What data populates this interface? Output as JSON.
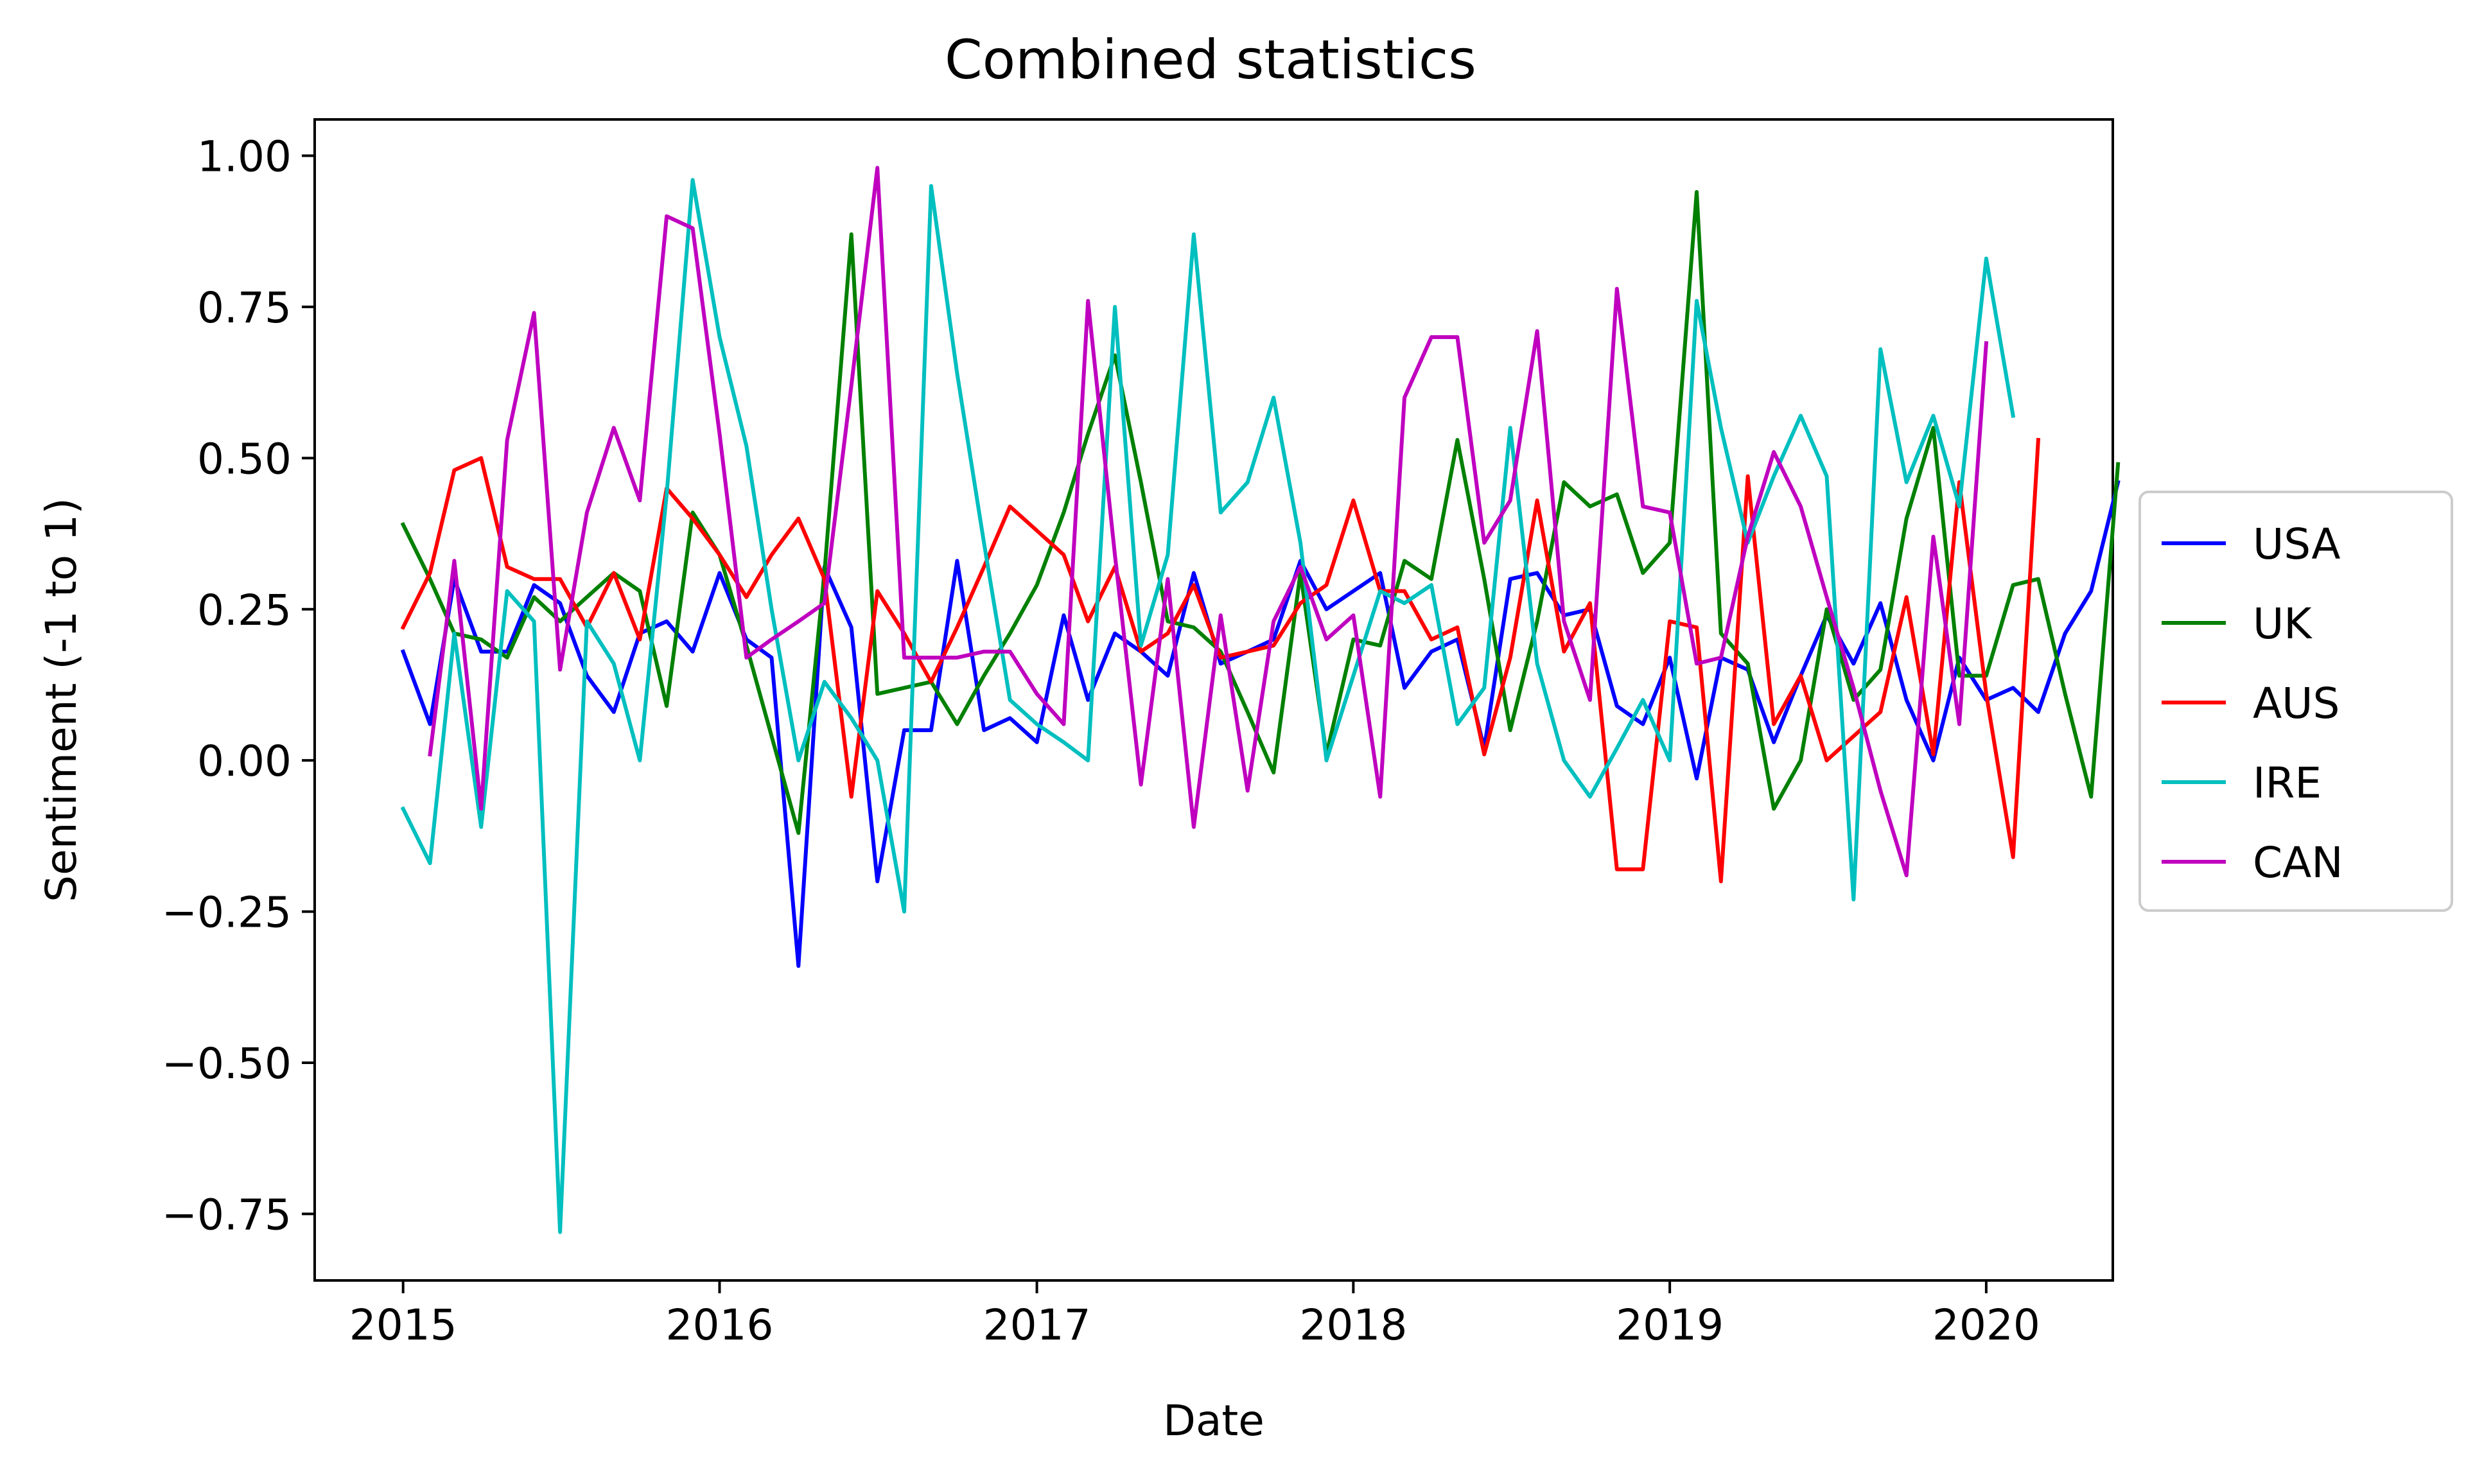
{
  "chart_data": {
    "type": "line",
    "title": "Combined statistics",
    "xlabel": "Date",
    "ylabel": "Sentiment (-1 to 1)",
    "xlim": [
      "2014-09-21",
      "2020-05-26"
    ],
    "ylim": [
      -0.86,
      1.06
    ],
    "x_ticks": [
      "2015",
      "2016",
      "2017",
      "2018",
      "2019",
      "2020"
    ],
    "y_ticks": [
      "1.00",
      "0.75",
      "0.50",
      "0.25",
      "0.00",
      "−0.25",
      "−0.50",
      "−0.75"
    ],
    "grid": false,
    "legend_position": "right-outside",
    "x_interval": "monthly",
    "series": [
      {
        "name": "USA",
        "color": "#0000ff",
        "start": "2015-01",
        "values": [
          0.18,
          0.06,
          0.3,
          0.18,
          0.18,
          0.29,
          0.26,
          0.14,
          0.08,
          0.21,
          0.23,
          0.18,
          0.31,
          0.2,
          0.17,
          -0.34,
          0.32,
          0.22,
          -0.2,
          0.05,
          0.05,
          0.33,
          0.05,
          0.07,
          0.03,
          0.24,
          0.1,
          0.21,
          0.18,
          0.14,
          0.31,
          0.16,
          0.18,
          0.2,
          0.33,
          0.25,
          0.28,
          0.31,
          0.12,
          0.18,
          0.2,
          0.02,
          0.3,
          0.31,
          0.24,
          0.25,
          0.09,
          0.06,
          0.17,
          -0.03,
          0.17,
          0.15,
          0.03,
          0.14,
          0.24,
          0.16,
          0.26,
          0.1,
          0.0,
          0.17,
          0.1,
          0.12,
          0.08,
          0.21,
          0.28,
          0.46
        ]
      },
      {
        "name": "UK",
        "color": "#008000",
        "start": "2015-01",
        "values": [
          0.39,
          0.3,
          0.21,
          0.2,
          0.17,
          0.27,
          0.23,
          0.27,
          0.31,
          0.28,
          0.09,
          0.41,
          0.34,
          0.19,
          0.04,
          -0.12,
          0.31,
          0.87,
          0.11,
          0.12,
          0.13,
          0.06,
          0.14,
          0.21,
          0.29,
          0.41,
          0.54,
          0.67,
          0.46,
          0.23,
          0.22,
          0.18,
          0.08,
          -0.02,
          0.31,
          0.01,
          0.2,
          0.19,
          0.33,
          0.3,
          0.53,
          0.3,
          0.05,
          0.23,
          0.46,
          0.42,
          0.44,
          0.31,
          0.36,
          0.94,
          0.21,
          0.16,
          -0.08,
          0.0,
          0.25,
          0.1,
          0.15,
          0.4,
          0.55,
          0.14,
          0.14,
          0.29,
          0.3,
          0.11,
          -0.06,
          0.49
        ]
      },
      {
        "name": "AUS",
        "color": "#ff0000",
        "start": "2015-01",
        "values": [
          0.22,
          0.31,
          0.48,
          0.5,
          0.32,
          0.3,
          0.3,
          0.22,
          0.31,
          0.2,
          0.45,
          0.4,
          0.34,
          0.27,
          0.34,
          0.4,
          0.3,
          -0.06,
          0.28,
          0.21,
          0.13,
          0.22,
          0.32,
          0.42,
          0.38,
          0.34,
          0.23,
          0.32,
          0.18,
          0.21,
          0.29,
          0.17,
          0.18,
          0.19,
          0.26,
          0.29,
          0.43,
          0.28,
          0.28,
          0.2,
          0.22,
          0.01,
          0.17,
          0.43,
          0.18,
          0.26,
          -0.18,
          -0.18,
          0.23,
          0.22,
          -0.2,
          0.47,
          0.06,
          0.14,
          0.0,
          0.04,
          0.08,
          0.27,
          0.01,
          0.46,
          0.11,
          -0.16,
          0.53
        ]
      },
      {
        "name": "IRE",
        "color": "#00bfbf",
        "start": "2015-01",
        "values": [
          -0.08,
          -0.17,
          0.21,
          -0.11,
          0.28,
          0.23,
          -0.78,
          0.23,
          0.16,
          0.0,
          0.44,
          0.96,
          0.7,
          0.52,
          0.25,
          0.0,
          0.13,
          0.07,
          0.0,
          -0.25,
          0.95,
          0.64,
          0.36,
          0.1,
          0.06,
          0.03,
          0.0,
          0.75,
          0.19,
          0.34,
          0.87,
          0.41,
          0.46,
          0.6,
          0.36,
          0.0,
          0.14,
          0.28,
          0.26,
          0.29,
          0.06,
          0.12,
          0.55,
          0.16,
          0.0,
          -0.06,
          0.02,
          0.1,
          0.0,
          0.76,
          0.55,
          0.36,
          0.47,
          0.57,
          0.47,
          -0.23,
          0.68,
          0.46,
          0.57,
          0.42,
          0.83,
          0.57
        ]
      },
      {
        "name": "CAN",
        "color": "#bf00bf",
        "start": "2015-01",
        "values": [
          null,
          0.01,
          0.33,
          -0.08,
          0.53,
          0.74,
          0.15,
          0.41,
          0.55,
          0.43,
          0.9,
          0.88,
          0.54,
          0.17,
          0.2,
          0.23,
          0.26,
          0.62,
          0.98,
          0.17,
          0.17,
          0.17,
          0.18,
          0.18,
          0.11,
          0.06,
          0.76,
          0.34,
          -0.04,
          0.3,
          -0.11,
          0.24,
          -0.05,
          0.23,
          0.32,
          0.2,
          0.24,
          -0.06,
          0.6,
          0.7,
          0.7,
          0.36,
          0.43,
          0.71,
          0.23,
          0.1,
          0.78,
          0.42,
          0.41,
          0.16,
          0.17,
          0.37,
          0.51,
          0.42,
          0.27,
          0.12,
          -0.05,
          -0.19,
          0.37,
          0.06,
          0.69
        ]
      }
    ]
  }
}
